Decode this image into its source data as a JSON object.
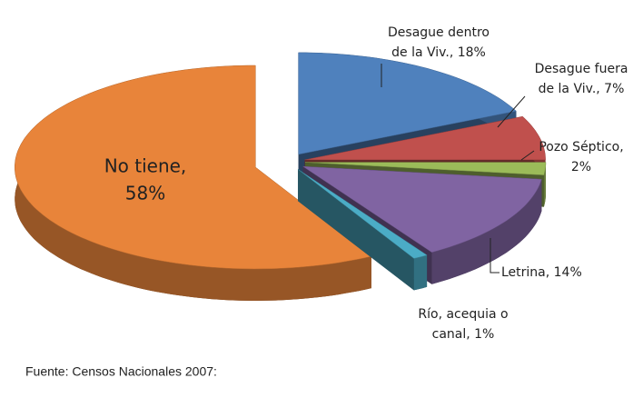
{
  "chart_data": {
    "type": "pie",
    "categories": [
      "Desague dentro de la Viv.",
      "Desague fuera de la Viv.",
      "Pozo Séptico",
      "Letrina",
      "Río, acequia o canal",
      "No tiene"
    ],
    "data_labels": [
      [
        "Desague dentro",
        "de la Viv., 18%"
      ],
      [
        "Desague fuera",
        "de la Viv., 7%"
      ],
      [
        "Pozo Séptico,",
        "2%"
      ],
      [
        "Letrina, 14%"
      ],
      [
        "Río, acequia o",
        "canal, 1%"
      ],
      [
        "No tiene,",
        "58%"
      ]
    ],
    "values": [
      18,
      7,
      2,
      14,
      1,
      58
    ],
    "colors": [
      "#4f81bd",
      "#c0504d",
      "#9bbb59",
      "#8064a2",
      "#4bacc6",
      "#e8843a"
    ],
    "source": "Fuente: Censos Nacionales 2007:"
  }
}
